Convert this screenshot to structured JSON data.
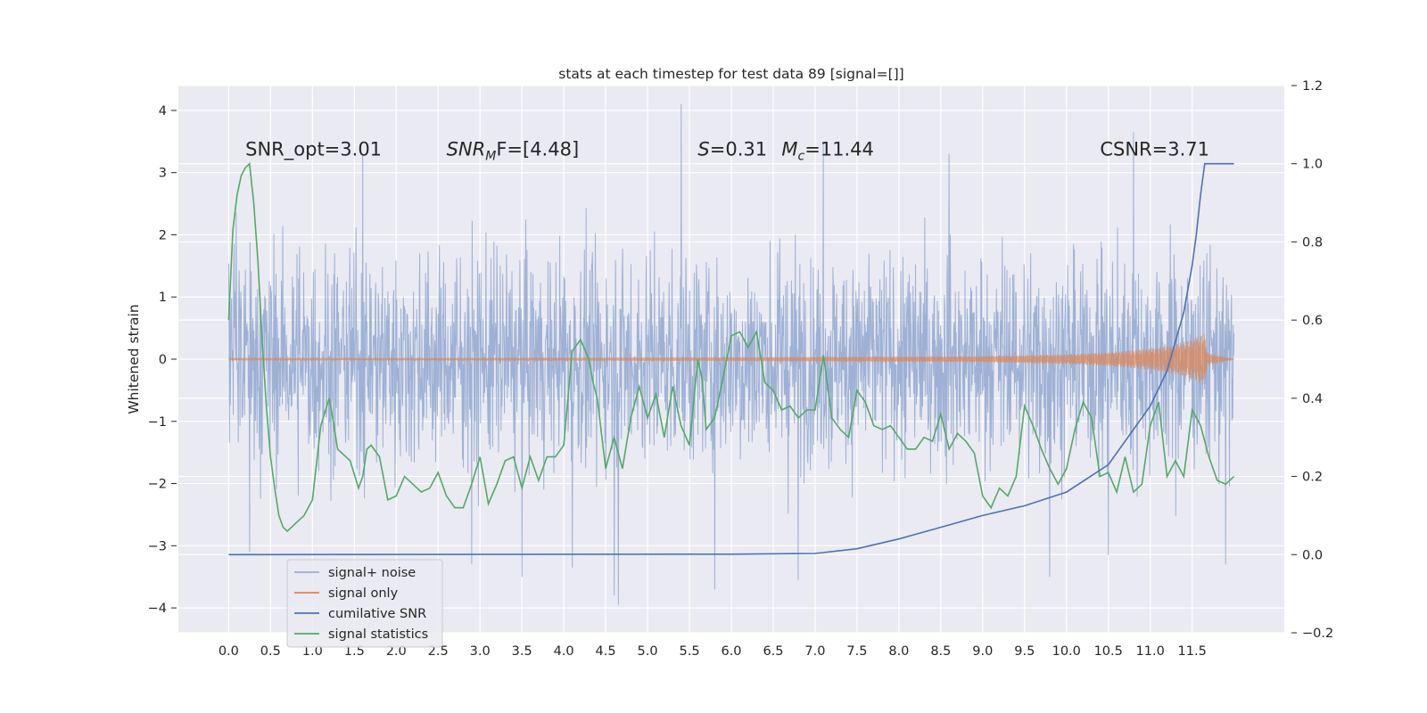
{
  "chart_data": {
    "type": "line",
    "title": "stats at each timestep for test data 89 [signal=[]]",
    "xlabel": "",
    "ylabel": "Whitened strain",
    "y2label": "",
    "xlim": [
      -0.6,
      12.6
    ],
    "ylim": [
      -4.4,
      4.4
    ],
    "y2lim": [
      -0.2,
      1.2
    ],
    "grid": true,
    "x_ticks": [
      "0.0",
      "0.5",
      "1.0",
      "1.5",
      "2.0",
      "2.5",
      "3.0",
      "3.5",
      "4.0",
      "4.5",
      "5.0",
      "5.5",
      "6.0",
      "6.5",
      "7.0",
      "7.5",
      "8.0",
      "8.5",
      "9.0",
      "9.5",
      "10.0",
      "10.5",
      "11.0",
      "11.5"
    ],
    "y_ticks": [
      "4",
      "3",
      "2",
      "1",
      "0",
      "−1",
      "−2",
      "−3",
      "−4"
    ],
    "y2_ticks": [
      "1.2",
      "1.0",
      "0.8",
      "0.6",
      "0.4",
      "0.2",
      "0.0",
      "−0.2"
    ],
    "annotations": [
      {
        "text": "SNR_opt=3.01",
        "x": 0.2,
        "y": 3.2
      },
      {
        "main": "SNR",
        "sub": "M",
        "rest": "F=[4.48]",
        "x": 2.6,
        "y": 3.2
      },
      {
        "main": "S",
        "rest": "=0.31",
        "x": 5.6,
        "y": 3.2
      },
      {
        "main": "M",
        "sub": "c",
        "rest": "=11.44",
        "x": 6.6,
        "y": 3.2
      },
      {
        "text": "CSNR=3.71",
        "x": 10.4,
        "y": 3.2
      }
    ],
    "legend": {
      "position": "lower-left",
      "entries": [
        {
          "label": "signal+ noise",
          "color": "#9aaed3"
        },
        {
          "label": "signal only",
          "color": "#dd8452"
        },
        {
          "label": "cumilative SNR",
          "color": "#4c72b0"
        },
        {
          "label": "signal statistics",
          "color": "#55a868"
        }
      ]
    },
    "series": [
      {
        "name": "signal+ noise",
        "axis": "left",
        "color": "#9aaed3",
        "x_range": [
          0.0,
          12.0
        ],
        "mean": 0.0,
        "band": 1.9,
        "spikes": [
          {
            "x": 0.25,
            "y": -3.1
          },
          {
            "x": 1.6,
            "y": 3.3
          },
          {
            "x": 2.9,
            "y": -3.3
          },
          {
            "x": 3.5,
            "y": -3.5
          },
          {
            "x": 4.1,
            "y": -3.35
          },
          {
            "x": 4.6,
            "y": -3.8
          },
          {
            "x": 4.65,
            "y": -3.95
          },
          {
            "x": 5.4,
            "y": 4.1
          },
          {
            "x": 5.8,
            "y": -3.7
          },
          {
            "x": 6.8,
            "y": -3.55
          },
          {
            "x": 7.1,
            "y": 3.5
          },
          {
            "x": 8.6,
            "y": 3.3
          },
          {
            "x": 9.8,
            "y": -3.5
          },
          {
            "x": 10.5,
            "y": -3.15
          },
          {
            "x": 10.8,
            "y": 3.65
          },
          {
            "x": 11.9,
            "y": -3.3
          }
        ]
      },
      {
        "name": "signal only",
        "axis": "left",
        "color": "#dd8452",
        "x_range": [
          0.0,
          12.0
        ],
        "envelope": [
          [
            0.0,
            0.01
          ],
          [
            6.0,
            0.03
          ],
          [
            9.0,
            0.05
          ],
          [
            10.0,
            0.08
          ],
          [
            10.5,
            0.11
          ],
          [
            11.0,
            0.17
          ],
          [
            11.3,
            0.24
          ],
          [
            11.5,
            0.32
          ],
          [
            11.65,
            0.42
          ],
          [
            11.68,
            0.1
          ],
          [
            12.0,
            0.0
          ]
        ]
      },
      {
        "name": "cumilative SNR",
        "axis": "right",
        "color": "#4c72b0",
        "x": [
          0,
          6,
          7,
          7.5,
          8,
          8.5,
          9,
          9.5,
          10,
          10.5,
          11,
          11.2,
          11.4,
          11.5,
          11.55,
          11.6,
          11.65,
          12.0
        ],
        "y": [
          0,
          0.001,
          0.003,
          0.015,
          0.04,
          0.07,
          0.1,
          0.125,
          0.16,
          0.23,
          0.38,
          0.47,
          0.62,
          0.74,
          0.82,
          0.92,
          1.0,
          1.0
        ]
      },
      {
        "name": "signal statistics",
        "axis": "right",
        "color": "#55a868",
        "x": [
          0,
          0.05,
          0.1,
          0.15,
          0.2,
          0.25,
          0.3,
          0.35,
          0.4,
          0.45,
          0.5,
          0.55,
          0.6,
          0.65,
          0.7,
          0.8,
          0.9,
          1.0,
          1.1,
          1.2,
          1.25,
          1.3,
          1.4,
          1.45,
          1.55,
          1.6,
          1.65,
          1.7,
          1.8,
          1.9,
          2.0,
          2.1,
          2.2,
          2.3,
          2.4,
          2.5,
          2.6,
          2.7,
          2.8,
          2.9,
          3.0,
          3.1,
          3.2,
          3.3,
          3.4,
          3.5,
          3.6,
          3.7,
          3.8,
          3.9,
          4.0,
          4.1,
          4.2,
          4.3,
          4.35,
          4.4,
          4.5,
          4.6,
          4.7,
          4.8,
          4.9,
          5.0,
          5.1,
          5.2,
          5.3,
          5.4,
          5.5,
          5.6,
          5.65,
          5.7,
          5.8,
          5.9,
          6.0,
          6.1,
          6.2,
          6.3,
          6.4,
          6.5,
          6.6,
          6.7,
          6.8,
          6.9,
          7.0,
          7.1,
          7.2,
          7.3,
          7.4,
          7.5,
          7.6,
          7.7,
          7.8,
          7.9,
          8.0,
          8.1,
          8.2,
          8.3,
          8.4,
          8.5,
          8.6,
          8.7,
          8.8,
          8.9,
          9.0,
          9.1,
          9.2,
          9.3,
          9.4,
          9.5,
          9.6,
          9.7,
          9.8,
          9.9,
          10.0,
          10.1,
          10.2,
          10.3,
          10.4,
          10.5,
          10.6,
          10.7,
          10.8,
          10.9,
          11.0,
          11.1,
          11.2,
          11.3,
          11.4,
          11.5,
          11.6,
          11.7,
          11.8,
          11.9,
          12.0
        ],
        "y": [
          0.6,
          0.83,
          0.92,
          0.97,
          0.99,
          1.0,
          0.9,
          0.75,
          0.55,
          0.38,
          0.25,
          0.17,
          0.1,
          0.07,
          0.06,
          0.08,
          0.1,
          0.14,
          0.33,
          0.4,
          0.34,
          0.27,
          0.25,
          0.24,
          0.17,
          0.2,
          0.27,
          0.28,
          0.25,
          0.14,
          0.15,
          0.2,
          0.18,
          0.16,
          0.17,
          0.21,
          0.15,
          0.12,
          0.12,
          0.18,
          0.25,
          0.13,
          0.18,
          0.24,
          0.25,
          0.17,
          0.25,
          0.19,
          0.25,
          0.25,
          0.28,
          0.52,
          0.55,
          0.5,
          0.44,
          0.4,
          0.22,
          0.3,
          0.22,
          0.35,
          0.43,
          0.35,
          0.41,
          0.3,
          0.43,
          0.33,
          0.28,
          0.5,
          0.45,
          0.32,
          0.35,
          0.45,
          0.56,
          0.57,
          0.53,
          0.57,
          0.44,
          0.42,
          0.37,
          0.38,
          0.35,
          0.37,
          0.37,
          0.51,
          0.35,
          0.32,
          0.3,
          0.42,
          0.39,
          0.33,
          0.32,
          0.33,
          0.3,
          0.27,
          0.27,
          0.3,
          0.29,
          0.36,
          0.27,
          0.31,
          0.29,
          0.26,
          0.15,
          0.12,
          0.17,
          0.15,
          0.2,
          0.38,
          0.33,
          0.27,
          0.22,
          0.18,
          0.22,
          0.32,
          0.39,
          0.35,
          0.2,
          0.21,
          0.16,
          0.25,
          0.16,
          0.18,
          0.33,
          0.39,
          0.2,
          0.24,
          0.2,
          0.37,
          0.33,
          0.25,
          0.19,
          0.18,
          0.2
        ]
      }
    ]
  }
}
